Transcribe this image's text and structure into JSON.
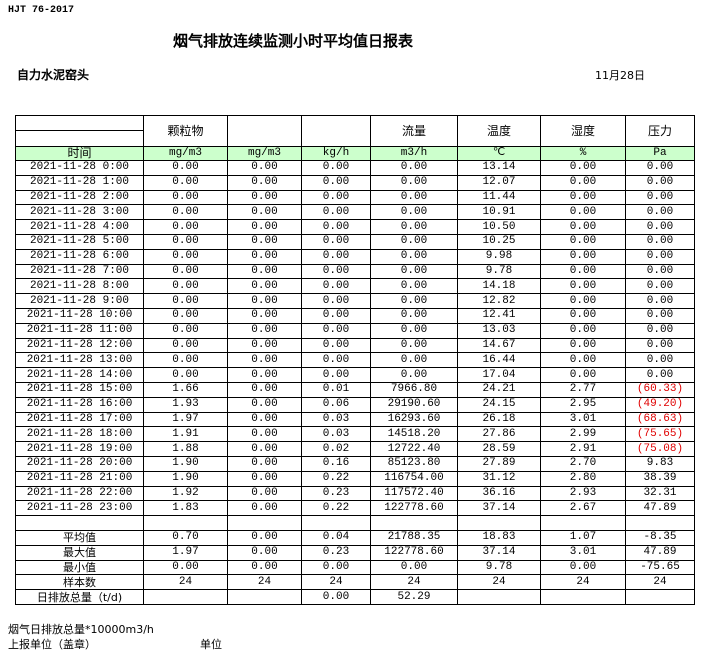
{
  "standard": "HJT  76-2017",
  "title": "烟气排放连续监测小时平均值日报表",
  "station": "自力水泥窑头",
  "date": "11月28日",
  "header": {
    "columns": [
      "",
      "颗粒物",
      "",
      "",
      "流量",
      "温度",
      "湿度",
      "压力"
    ],
    "units": [
      "时间",
      "mg/m3",
      "mg/m3",
      "kg/h",
      "m3/h",
      "℃",
      "%",
      "Pa"
    ]
  },
  "colors": {
    "unit_row_bg": "#ccffcc",
    "negative_value": "#e00000"
  },
  "rows": [
    [
      "2021-11-28 0:00",
      "0.00",
      "0.00",
      "0.00",
      "0.00",
      "13.14",
      "0.00",
      "0.00"
    ],
    [
      "2021-11-28 1:00",
      "0.00",
      "0.00",
      "0.00",
      "0.00",
      "12.07",
      "0.00",
      "0.00"
    ],
    [
      "2021-11-28 2:00",
      "0.00",
      "0.00",
      "0.00",
      "0.00",
      "11.44",
      "0.00",
      "0.00"
    ],
    [
      "2021-11-28 3:00",
      "0.00",
      "0.00",
      "0.00",
      "0.00",
      "10.91",
      "0.00",
      "0.00"
    ],
    [
      "2021-11-28 4:00",
      "0.00",
      "0.00",
      "0.00",
      "0.00",
      "10.50",
      "0.00",
      "0.00"
    ],
    [
      "2021-11-28 5:00",
      "0.00",
      "0.00",
      "0.00",
      "0.00",
      "10.25",
      "0.00",
      "0.00"
    ],
    [
      "2021-11-28 6:00",
      "0.00",
      "0.00",
      "0.00",
      "0.00",
      "9.98",
      "0.00",
      "0.00"
    ],
    [
      "2021-11-28 7:00",
      "0.00",
      "0.00",
      "0.00",
      "0.00",
      "9.78",
      "0.00",
      "0.00"
    ],
    [
      "2021-11-28 8:00",
      "0.00",
      "0.00",
      "0.00",
      "0.00",
      "14.18",
      "0.00",
      "0.00"
    ],
    [
      "2021-11-28 9:00",
      "0.00",
      "0.00",
      "0.00",
      "0.00",
      "12.82",
      "0.00",
      "0.00"
    ],
    [
      "2021-11-28 10:00",
      "0.00",
      "0.00",
      "0.00",
      "0.00",
      "12.41",
      "0.00",
      "0.00"
    ],
    [
      "2021-11-28 11:00",
      "0.00",
      "0.00",
      "0.00",
      "0.00",
      "13.03",
      "0.00",
      "0.00"
    ],
    [
      "2021-11-28 12:00",
      "0.00",
      "0.00",
      "0.00",
      "0.00",
      "14.67",
      "0.00",
      "0.00"
    ],
    [
      "2021-11-28 13:00",
      "0.00",
      "0.00",
      "0.00",
      "0.00",
      "16.44",
      "0.00",
      "0.00"
    ],
    [
      "2021-11-28 14:00",
      "0.00",
      "0.00",
      "0.00",
      "0.00",
      "17.04",
      "0.00",
      "0.00"
    ],
    [
      "2021-11-28 15:00",
      "1.66",
      "0.00",
      "0.01",
      "7966.80",
      "24.21",
      "2.77",
      "(60.33)"
    ],
    [
      "2021-11-28 16:00",
      "1.93",
      "0.00",
      "0.06",
      "29190.60",
      "24.15",
      "2.95",
      "(49.20)"
    ],
    [
      "2021-11-28 17:00",
      "1.97",
      "0.00",
      "0.03",
      "16293.60",
      "26.18",
      "3.01",
      "(68.63)"
    ],
    [
      "2021-11-28 18:00",
      "1.91",
      "0.00",
      "0.03",
      "14518.20",
      "27.86",
      "2.99",
      "(75.65)"
    ],
    [
      "2021-11-28 19:00",
      "1.88",
      "0.00",
      "0.02",
      "12722.40",
      "28.59",
      "2.91",
      "(75.08)"
    ],
    [
      "2021-11-28 20:00",
      "1.90",
      "0.00",
      "0.16",
      "85123.80",
      "27.89",
      "2.70",
      "9.83"
    ],
    [
      "2021-11-28 21:00",
      "1.90",
      "0.00",
      "0.22",
      "116754.00",
      "31.12",
      "2.80",
      "38.39"
    ],
    [
      "2021-11-28 22:00",
      "1.92",
      "0.00",
      "0.23",
      "117572.40",
      "36.16",
      "2.93",
      "32.31"
    ],
    [
      "2021-11-28 23:00",
      "1.83",
      "0.00",
      "0.22",
      "122778.60",
      "37.14",
      "2.67",
      "47.89"
    ]
  ],
  "summary": [
    [
      "平均值",
      "0.70",
      "0.00",
      "0.04",
      "21788.35",
      "18.83",
      "1.07",
      "-8.35"
    ],
    [
      "最大值",
      "1.97",
      "0.00",
      "0.23",
      "122778.60",
      "37.14",
      "3.01",
      "47.89"
    ],
    [
      "最小值",
      "0.00",
      "0.00",
      "0.00",
      "0.00",
      "9.78",
      "0.00",
      "-75.65"
    ],
    [
      "样本数",
      "24",
      "24",
      "24",
      "24",
      "24",
      "24",
      "24"
    ],
    [
      "日排放总量（t/d)",
      "",
      "",
      "0.00",
      "52.29",
      "",
      "",
      ""
    ]
  ],
  "footer": {
    "total_label": "烟气日排放总量*10000m3/h",
    "reporter_label": "上报单位（盖章）",
    "unit_label": "单位"
  }
}
